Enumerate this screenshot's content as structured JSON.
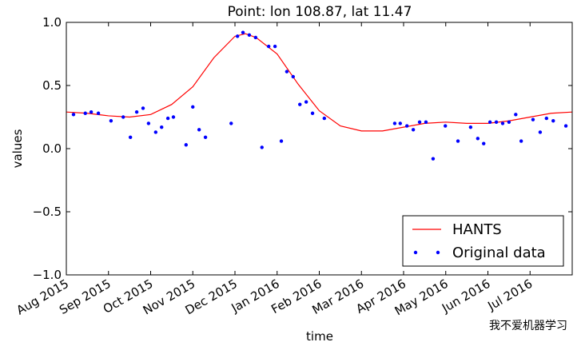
{
  "chart_data": {
    "type": "line",
    "title": "Point: lon 108.87, lat 11.47",
    "xlabel": "time",
    "ylabel": "values",
    "watermark": "我不爱机器学习",
    "xlim": [
      0,
      12
    ],
    "xticks": [
      {
        "value": 0,
        "label": "Aug 2015"
      },
      {
        "value": 1,
        "label": "Sep 2015"
      },
      {
        "value": 2,
        "label": "Oct 2015"
      },
      {
        "value": 3,
        "label": "Nov 2015"
      },
      {
        "value": 4,
        "label": "Dec 2015"
      },
      {
        "value": 5,
        "label": "Jan 2016"
      },
      {
        "value": 6,
        "label": "Feb 2016"
      },
      {
        "value": 7,
        "label": "Mar 2016"
      },
      {
        "value": 8,
        "label": "Apr 2016"
      },
      {
        "value": 9,
        "label": "May 2016"
      },
      {
        "value": 10,
        "label": "Jun 2016"
      },
      {
        "value": 11,
        "label": "Jul 2016"
      }
    ],
    "ylim": [
      -1,
      1
    ],
    "yticks": [
      {
        "value": -1,
        "label": "−1.0"
      },
      {
        "value": -0.5,
        "label": "−0.5"
      },
      {
        "value": 0,
        "label": "0.0"
      },
      {
        "value": 0.5,
        "label": "0.5"
      },
      {
        "value": 1,
        "label": "1.0"
      }
    ],
    "grid": false,
    "legend": "lower right",
    "series": [
      {
        "name": "HANTS",
        "type": "line",
        "color": "#ff0000",
        "x": [
          0,
          0.5,
          1,
          1.5,
          2,
          2.5,
          3,
          3.5,
          4,
          4.25,
          4.5,
          5,
          5.5,
          6,
          6.5,
          7,
          7.5,
          8,
          8.5,
          9,
          9.5,
          10,
          10.5,
          11,
          11.5,
          12
        ],
        "values": [
          0.29,
          0.28,
          0.26,
          0.25,
          0.27,
          0.35,
          0.49,
          0.72,
          0.89,
          0.91,
          0.88,
          0.75,
          0.51,
          0.3,
          0.18,
          0.14,
          0.14,
          0.17,
          0.2,
          0.21,
          0.2,
          0.2,
          0.22,
          0.25,
          0.28,
          0.29
        ]
      },
      {
        "name": "Original data",
        "type": "scatter",
        "color": "#0000ff",
        "x": [
          0.17,
          0.45,
          0.59,
          0.76,
          1.06,
          1.35,
          1.52,
          1.67,
          1.82,
          1.95,
          2.12,
          2.26,
          2.41,
          2.54,
          2.84,
          3.0,
          3.15,
          3.3,
          3.91,
          4.06,
          4.19,
          4.34,
          4.49,
          4.64,
          4.8,
          4.95,
          5.1,
          5.23,
          5.38,
          5.54,
          5.69,
          5.84,
          6.12,
          7.79,
          7.92,
          8.08,
          8.23,
          8.38,
          8.53,
          8.7,
          8.99,
          9.29,
          9.59,
          9.76,
          9.9,
          10.05,
          10.2,
          10.35,
          10.5,
          10.66,
          10.79,
          11.07,
          11.24,
          11.39,
          11.55,
          11.85
        ],
        "values": [
          0.27,
          0.28,
          0.29,
          0.28,
          0.22,
          0.25,
          0.09,
          0.29,
          0.32,
          0.2,
          0.13,
          0.17,
          0.24,
          0.25,
          0.03,
          0.33,
          0.15,
          0.09,
          0.2,
          0.89,
          0.92,
          0.9,
          0.88,
          0.01,
          0.81,
          0.81,
          0.06,
          0.61,
          0.57,
          0.35,
          0.37,
          0.28,
          0.24,
          0.2,
          0.2,
          0.18,
          0.15,
          0.21,
          0.21,
          -0.08,
          0.18,
          0.06,
          0.17,
          0.08,
          0.04,
          0.21,
          0.21,
          0.2,
          0.21,
          0.27,
          0.06,
          0.23,
          0.13,
          0.24,
          0.22,
          0.18
        ]
      }
    ]
  }
}
